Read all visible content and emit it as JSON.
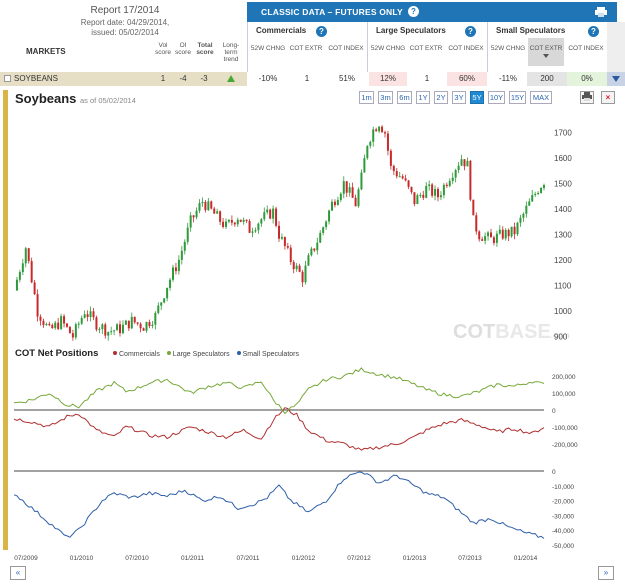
{
  "report": {
    "title": "Report 17/2014",
    "date_line": "Report date: 04/29/2014,",
    "issued_line": "issued: 05/02/2014"
  },
  "table_header": {
    "markets": "MARKETS",
    "vol_score": "Vol score",
    "oi_score": "OI score",
    "total_score": "Total score",
    "long_term_trend": "Long-term trend"
  },
  "classic": {
    "title": "CLASSIC DATA – FUTURES ONLY",
    "groups": [
      {
        "title": "Commercials",
        "cols": [
          "52W CHNG",
          "COT EXTR",
          "COT INDEX"
        ]
      },
      {
        "title": "Large Speculators",
        "cols": [
          "52W CHNG",
          "COT EXTR",
          "COT INDEX"
        ]
      },
      {
        "title": "Small Speculators",
        "cols": [
          "52W CHNG",
          "COT EXTR",
          "COT INDEX"
        ]
      }
    ]
  },
  "row": {
    "market": "SOYBEANS",
    "vol_score": "1",
    "oi_score": "-4",
    "total_score": "-3",
    "trend": "up",
    "commercials": {
      "chng": "-10%",
      "extr": "1",
      "index": "51%"
    },
    "large_specs": {
      "chng": "12%",
      "extr": "1",
      "index": "60%"
    },
    "small_specs": {
      "chng": "-11%",
      "extr": "200",
      "index": "0%"
    }
  },
  "chart": {
    "title": "Soybeans",
    "asof": "as of 05/02/2014",
    "ranges": [
      "1m",
      "3m",
      "6m",
      "1Y",
      "2Y",
      "3Y",
      "5Y",
      "10Y",
      "15Y",
      "MAX"
    ],
    "active_range": "5Y",
    "watermark_a": "COT",
    "watermark_b": "BASE",
    "watermark_c": ".com",
    "cot_title": "COT Net Positions",
    "legend": [
      "Commercials",
      "Large Speculators",
      "Small Speculators"
    ]
  },
  "colors": {
    "header_blue": "#1f75b6",
    "commercials": "#b03030",
    "large_specs": "#77a83a",
    "small_specs": "#2f5fa8",
    "candle_up": "#2e9a3a",
    "candle_down": "#c72a2a"
  },
  "chart_data": [
    {
      "type": "candlestick",
      "title": "Soybeans",
      "x_ticks": [
        "07/2009",
        "01/2010",
        "07/2010",
        "01/2011",
        "07/2011",
        "01/2012",
        "07/2012",
        "01/2013",
        "07/2013",
        "01/2014"
      ],
      "y_ticks": [
        900,
        1000,
        1100,
        1200,
        1300,
        1400,
        1500,
        1600,
        1700
      ],
      "ylim": [
        870,
        1780
      ],
      "price_path": [
        [
          0,
          1080
        ],
        [
          4,
          1250
        ],
        [
          8,
          1000
        ],
        [
          12,
          920
        ],
        [
          16,
          960
        ],
        [
          20,
          900
        ],
        [
          24,
          1000
        ],
        [
          28,
          950
        ],
        [
          32,
          920
        ],
        [
          36,
          930
        ],
        [
          40,
          960
        ],
        [
          44,
          940
        ],
        [
          48,
          980
        ],
        [
          52,
          1100
        ],
        [
          56,
          1200
        ],
        [
          60,
          1350
        ],
        [
          64,
          1430
        ],
        [
          68,
          1380
        ],
        [
          72,
          1330
        ],
        [
          76,
          1370
        ],
        [
          80,
          1320
        ],
        [
          84,
          1360
        ],
        [
          88,
          1390
        ],
        [
          90,
          1300
        ],
        [
          94,
          1200
        ],
        [
          98,
          1130
        ],
        [
          100,
          1200
        ],
        [
          104,
          1300
        ],
        [
          108,
          1420
        ],
        [
          112,
          1500
        ],
        [
          116,
          1420
        ],
        [
          118,
          1520
        ],
        [
          120,
          1660
        ],
        [
          122,
          1710
        ],
        [
          124,
          1740
        ],
        [
          126,
          1700
        ],
        [
          128,
          1560
        ],
        [
          132,
          1520
        ],
        [
          136,
          1430
        ],
        [
          140,
          1480
        ],
        [
          144,
          1450
        ],
        [
          148,
          1530
        ],
        [
          152,
          1600
        ],
        [
          154,
          1570
        ],
        [
          156,
          1350
        ],
        [
          158,
          1300
        ],
        [
          162,
          1280
        ],
        [
          166,
          1300
        ],
        [
          170,
          1310
        ],
        [
          174,
          1400
        ],
        [
          178,
          1480
        ],
        [
          180,
          1510
        ]
      ]
    },
    {
      "type": "line",
      "title": "COT Net Positions",
      "series": [
        {
          "name": "Commercials",
          "values": [
            [
              0,
              -50000
            ],
            [
              6,
              -70000
            ],
            [
              12,
              -100000
            ],
            [
              18,
              -40000
            ],
            [
              22,
              -20000
            ],
            [
              28,
              -120000
            ],
            [
              34,
              -160000
            ],
            [
              38,
              -100000
            ],
            [
              42,
              -120000
            ],
            [
              46,
              -150000
            ],
            [
              52,
              -160000
            ],
            [
              56,
              -130000
            ],
            [
              60,
              -100000
            ],
            [
              66,
              -130000
            ],
            [
              72,
              -160000
            ],
            [
              78,
              -120000
            ],
            [
              84,
              -170000
            ],
            [
              88,
              -60000
            ],
            [
              92,
              10000
            ],
            [
              96,
              -30000
            ],
            [
              100,
              -120000
            ],
            [
              106,
              -180000
            ],
            [
              112,
              -200000
            ],
            [
              118,
              -240000
            ],
            [
              124,
              -220000
            ],
            [
              130,
              -200000
            ],
            [
              136,
              -160000
            ],
            [
              140,
              -120000
            ],
            [
              146,
              -80000
            ],
            [
              152,
              -60000
            ],
            [
              158,
              -90000
            ],
            [
              164,
              -130000
            ],
            [
              170,
              -110000
            ],
            [
              176,
              -140000
            ],
            [
              180,
              -100000
            ]
          ]
        },
        {
          "name": "Large Speculators",
          "values": [
            [
              0,
              40000
            ],
            [
              6,
              60000
            ],
            [
              12,
              100000
            ],
            [
              18,
              30000
            ],
            [
              22,
              20000
            ],
            [
              28,
              110000
            ],
            [
              34,
              160000
            ],
            [
              38,
              110000
            ],
            [
              42,
              130000
            ],
            [
              46,
              160000
            ],
            [
              52,
              180000
            ],
            [
              56,
              140000
            ],
            [
              60,
              100000
            ],
            [
              66,
              140000
            ],
            [
              72,
              160000
            ],
            [
              78,
              130000
            ],
            [
              84,
              170000
            ],
            [
              88,
              60000
            ],
            [
              92,
              -10000
            ],
            [
              96,
              30000
            ],
            [
              100,
              120000
            ],
            [
              106,
              180000
            ],
            [
              112,
              200000
            ],
            [
              118,
              240000
            ],
            [
              124,
              210000
            ],
            [
              130,
              190000
            ],
            [
              136,
              150000
            ],
            [
              140,
              120000
            ],
            [
              146,
              90000
            ],
            [
              152,
              80000
            ],
            [
              158,
              110000
            ],
            [
              164,
              150000
            ],
            [
              170,
              140000
            ],
            [
              176,
              170000
            ],
            [
              180,
              150000
            ]
          ]
        },
        {
          "name": "Small Speculators",
          "values": [
            [
              0,
              -15000
            ],
            [
              6,
              -25000
            ],
            [
              12,
              -35000
            ],
            [
              18,
              -45000
            ],
            [
              22,
              -40000
            ],
            [
              26,
              -30000
            ],
            [
              30,
              -20000
            ],
            [
              34,
              -15000
            ],
            [
              40,
              -18000
            ],
            [
              46,
              -15000
            ],
            [
              52,
              -17000
            ],
            [
              58,
              -13000
            ],
            [
              64,
              -20000
            ],
            [
              70,
              -17000
            ],
            [
              76,
              -25000
            ],
            [
              82,
              -22000
            ],
            [
              86,
              -18000
            ],
            [
              90,
              -10000
            ],
            [
              94,
              -20000
            ],
            [
              100,
              -28000
            ],
            [
              106,
              -20000
            ],
            [
              112,
              -5000
            ],
            [
              118,
              0
            ],
            [
              124,
              -8000
            ],
            [
              130,
              -3000
            ],
            [
              136,
              -10000
            ],
            [
              140,
              -15000
            ],
            [
              146,
              -18000
            ],
            [
              150,
              -25000
            ],
            [
              156,
              -35000
            ],
            [
              162,
              -32000
            ],
            [
              168,
              -38000
            ],
            [
              174,
              -42000
            ],
            [
              180,
              -45000
            ]
          ]
        }
      ],
      "y_ticks_upper": [
        "200,000",
        "100,000",
        "0",
        "-100,000",
        "-200,000"
      ],
      "y_ticks_lower": [
        "0",
        "-10,000",
        "-20,000",
        "-30,000",
        "-40,000",
        "-50,000"
      ]
    }
  ]
}
